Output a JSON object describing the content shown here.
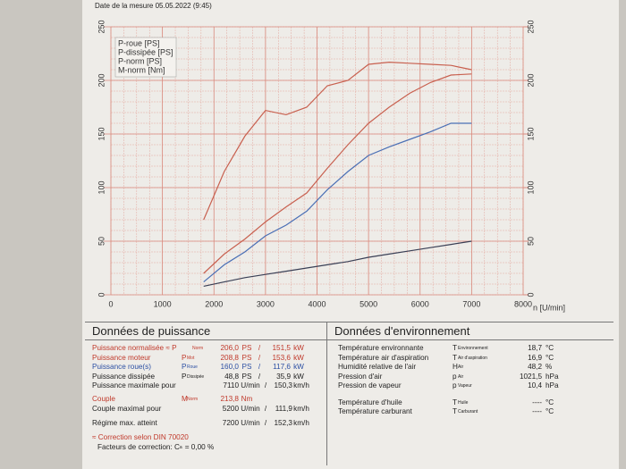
{
  "header": {
    "date": "Date de la mesure 05.05.2022 (9:45)"
  },
  "chart_data": {
    "type": "line",
    "xlabel": "n [U/min]",
    "x": [
      1800,
      2200,
      2600,
      3000,
      3400,
      3800,
      4200,
      4600,
      5000,
      5400,
      5800,
      6200,
      6600,
      7000
    ],
    "series": [
      {
        "name": "P-roue [PS]",
        "color": "#4a6fb5",
        "values": [
          12,
          28,
          40,
          55,
          65,
          78,
          98,
          115,
          130,
          138,
          145,
          152,
          160,
          160
        ]
      },
      {
        "name": "P-dissipée [PS]",
        "color": "#3a3f55",
        "values": [
          8,
          12,
          16,
          19,
          22,
          25,
          28,
          31,
          35,
          38,
          41,
          44,
          47,
          50
        ]
      },
      {
        "name": "P-norm [PS]",
        "color": "#c8604f",
        "values": [
          20,
          38,
          52,
          68,
          82,
          95,
          118,
          140,
          160,
          175,
          188,
          198,
          205,
          206
        ]
      },
      {
        "name": "M-norm [Nm]",
        "color": "#c8604f",
        "axis": "y2",
        "values": [
          70,
          115,
          148,
          172,
          168,
          175,
          195,
          200,
          215,
          217,
          216,
          215,
          214,
          210
        ]
      }
    ],
    "xlim": [
      0,
      8000
    ],
    "xticks": [
      0,
      1000,
      2000,
      3000,
      4000,
      5000,
      6000,
      7000,
      8000
    ],
    "ylim": [
      0,
      250
    ],
    "yticks": [
      0,
      50,
      100,
      150,
      200,
      250
    ],
    "y2lim": [
      0,
      250
    ],
    "y2ticks": [
      0,
      50,
      100,
      150,
      200,
      250
    ],
    "grid": true,
    "legend": "upper left"
  },
  "power": {
    "title": "Données de puissance",
    "rows": [
      [
        "Puissance normalisée ≈ P",
        "Norm",
        "206,0",
        "PS",
        "/",
        "151,5",
        "kW"
      ],
      [
        "Puissance moteur",
        "P",
        "Mot",
        "208,8",
        "PS",
        "/",
        "153,6",
        "kW"
      ],
      [
        "Puissance roue(s)",
        "P",
        "Roue",
        "160,0",
        "PS",
        "/",
        "117,6",
        "kW"
      ],
      [
        "Puissance dissipée",
        "P",
        "Dissipée",
        "48,8",
        "PS",
        "/",
        "35,9",
        "kW"
      ],
      [
        "Puissance maximale pour",
        "7110",
        "U/min",
        "/",
        "150,3",
        "km/h"
      ],
      [
        "Couple",
        "M",
        "Norm",
        "213,8",
        "Nm"
      ],
      [
        "Couple maximal pour",
        "5200",
        "U/min",
        "/",
        "111,9",
        "km/h"
      ],
      [
        "Régime max. atteint",
        "7200",
        "U/min",
        "/",
        "152,3",
        "km/h"
      ],
      [
        "≈ Correction selon DIN 70020"
      ],
      [
        "Facteurs de correction: C",
        "a",
        "= 0,00 %"
      ]
    ]
  },
  "environment": {
    "title": "Données d'environnement",
    "rows": [
      [
        "Température environnante",
        "T",
        "Environnement",
        "18,7",
        "°C"
      ],
      [
        "Température air d'aspiration",
        "T",
        "Air d'aspiration",
        "16,9",
        "°C"
      ],
      [
        "Humidité relative de l'air",
        "H",
        "Air",
        "48,2",
        "%"
      ],
      [
        "Pression d'air",
        "p",
        "Air",
        "1021,5",
        "hPa"
      ],
      [
        "Pression de vapeur",
        "p",
        "Vapeur",
        "10,4",
        "hPa"
      ],
      [
        "Température d'huile",
        "T",
        "Huile",
        "----",
        "°C"
      ],
      [
        "Température carburant",
        "T",
        "Carburant",
        "----",
        "°C"
      ]
    ]
  }
}
